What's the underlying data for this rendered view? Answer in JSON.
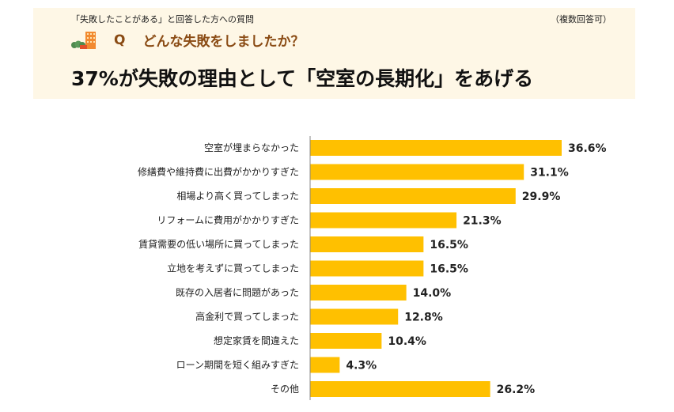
{
  "header": {
    "pre_question": "「失敗したことがある」と回答した方への質問",
    "note": "（複数回答可）",
    "q_mark": "Q",
    "question": "どんな失敗をしましたか？",
    "headline": "37%が失敗の理由として「空室の長期化」をあげる",
    "icon": "house-building-icon"
  },
  "chart_data": {
    "type": "bar",
    "orientation": "horizontal",
    "categories": [
      "空室が埋まらなかった",
      "修繕費や維持費に出費がかかりすぎた",
      "相場より高く買ってしまった",
      "リフォームに費用がかかりすぎた",
      "賃貸需要の低い場所に買ってしまった",
      "立地を考えずに買ってしまった",
      "既存の入居者に問題があった",
      "高金利で買ってしまった",
      "想定家賃を間違えた",
      "ローン期間を短く組みすぎた",
      "その他"
    ],
    "values": [
      36.6,
      31.1,
      29.9,
      21.3,
      16.5,
      16.5,
      14.0,
      12.8,
      10.4,
      4.3,
      26.2
    ],
    "labels": [
      "36.6%",
      "31.1%",
      "29.9%",
      "21.3%",
      "16.5%",
      "16.5%",
      "14.0%",
      "12.8%",
      "10.4%",
      "4.3%",
      "26.2%"
    ],
    "unit": "%",
    "xlim": [
      0,
      40
    ],
    "grid": false,
    "bar_color": "#ffc000"
  }
}
